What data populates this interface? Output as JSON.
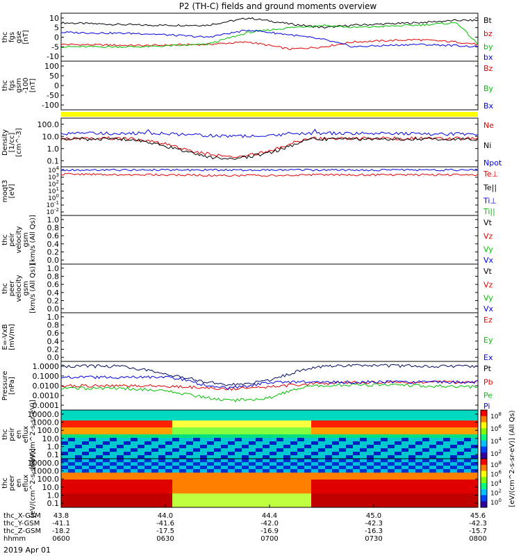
{
  "title": "P2 (TH-C) fields and ground moments overview",
  "date_label": "2019 Apr 01",
  "chart_data": {
    "type": "line",
    "panels": [
      {
        "id": "p1",
        "ylabel": [
          "thc",
          "fgs",
          "gse",
          "[nT]"
        ],
        "ticks": [
          "10",
          "5",
          "0",
          "-5",
          "-10"
        ],
        "ylim": [
          -10,
          10
        ],
        "legend": [
          {
            "label": "Bt",
            "color": "#000000"
          },
          {
            "label": "bz",
            "color": "#e00000"
          },
          {
            "label": "by",
            "color": "#00c000"
          },
          {
            "label": "bx",
            "color": "#0000e0"
          }
        ],
        "series": [
          {
            "name": "Bt",
            "color": "#000000",
            "x": [
              0,
              0.2,
              0.35,
              0.45,
              0.55,
              0.63,
              0.7,
              0.85,
              0.95,
              1
            ],
            "y": [
              6,
              5,
              5,
              8,
              5.5,
              4,
              5,
              6,
              7,
              7
            ]
          },
          {
            "name": "bz",
            "color": "#e00000",
            "x": [
              0,
              0.2,
              0.35,
              0.45,
              0.55,
              0.63,
              0.7,
              0.85,
              0.95,
              1
            ],
            "y": [
              -3,
              -3.5,
              -3,
              -2,
              -5,
              -4,
              -2,
              -1,
              -2,
              -3
            ]
          },
          {
            "name": "by",
            "color": "#00c000",
            "x": [
              0,
              0.2,
              0.35,
              0.45,
              0.55,
              0.63,
              0.7,
              0.85,
              0.95,
              1
            ],
            "y": [
              -4,
              -4,
              -3,
              2,
              4,
              5,
              4,
              5,
              6,
              -3
            ]
          },
          {
            "name": "bx",
            "color": "#0000e0",
            "x": [
              0,
              0.2,
              0.35,
              0.45,
              0.55,
              0.63,
              0.7,
              0.85,
              0.95,
              1
            ],
            "y": [
              2,
              1.5,
              0,
              3,
              1,
              -1,
              -4,
              -3,
              -3.5,
              -4
            ]
          }
        ]
      },
      {
        "id": "p2",
        "ylabel": [
          "thc",
          "fgs",
          "gsm",
          "-100",
          "[nT]"
        ],
        "ticks": [
          "100",
          "50",
          "0",
          "-50",
          "-100"
        ],
        "ylim": [
          -120,
          120
        ],
        "legend": [
          {
            "label": "Bz",
            "color": "#e00000"
          },
          {
            "label": "By",
            "color": "#00c000"
          },
          {
            "label": "Bx",
            "color": "#0000e0"
          }
        ],
        "series": []
      },
      {
        "id": "p3",
        "ylabel": [
          "Density",
          "[1/cc]",
          "[cm^-3]"
        ],
        "ticks": [
          "100.0",
          "10.0",
          "1.0",
          "0.1"
        ],
        "ylim": [
          0.05,
          300
        ],
        "yscale": "log",
        "legend": [
          {
            "label": "Ne",
            "color": "#e00000"
          },
          {
            "label": "Ni",
            "color": "#000000"
          },
          {
            "label": "Npot",
            "color": "#0000e0"
          }
        ],
        "series": [
          {
            "name": "Npot",
            "color": "#0000e0",
            "x": [
              0,
              0.2,
              0.21,
              0.215,
              0.25,
              0.3,
              0.4,
              0.5,
              0.55,
              0.6,
              0.61,
              0.615,
              0.7,
              0.85,
              1
            ],
            "y": [
              20,
              20,
              40,
              20,
              20,
              15,
              12,
              12,
              20,
              20,
              50,
              20,
              20,
              18,
              18
            ]
          },
          {
            "name": "Ne",
            "color": "#e00000",
            "x": [
              0,
              0.15,
              0.2,
              0.25,
              0.3,
              0.35,
              0.4,
              0.45,
              0.5,
              0.55,
              0.58,
              0.6,
              0.7,
              0.85,
              1
            ],
            "y": [
              8,
              8,
              6,
              3,
              1,
              0.5,
              0.3,
              0.4,
              0.8,
              3,
              6,
              8,
              8,
              8,
              8
            ]
          },
          {
            "name": "Ni",
            "color": "#000000",
            "x": [
              0,
              0.15,
              0.2,
              0.25,
              0.3,
              0.35,
              0.4,
              0.45,
              0.5,
              0.55,
              0.58,
              0.6,
              0.7,
              0.85,
              1
            ],
            "y": [
              7,
              7,
              5,
              2,
              0.7,
              0.3,
              0.2,
              0.3,
              0.6,
              2,
              5,
              7,
              7,
              7,
              7
            ]
          }
        ]
      },
      {
        "id": "p4",
        "ylabel": [
          "moqt3",
          "[eV]"
        ],
        "ticks": [
          "10^4",
          "10^3",
          "10^2",
          "10^1",
          "10^0",
          "10^-1",
          "10^-2"
        ],
        "ylim": [
          0.01,
          10000
        ],
        "yscale": "log",
        "legend": [
          {
            "label": "Te⊥",
            "color": "#e00000"
          },
          {
            "label": "Te||",
            "color": "#000000"
          },
          {
            "label": "Ti⊥",
            "color": "#0000e0"
          },
          {
            "label": "Ti||",
            "color": "#00c000"
          }
        ],
        "series": [
          {
            "name": "Ti⊥",
            "color": "#0000e0",
            "x": [
              0,
              0.5,
              1
            ],
            "y": [
              4000,
              4000,
              4000
            ]
          },
          {
            "name": "Te⊥",
            "color": "#e00000",
            "x": [
              0,
              0.3,
              0.4,
              0.5,
              0.6,
              1
            ],
            "y": [
              1200,
              1000,
              800,
              900,
              1000,
              1000
            ]
          }
        ]
      },
      {
        "id": "p5",
        "ylabel": [
          "thc",
          "peir",
          "velocity",
          "gsm",
          "[km/s (All Qs)]"
        ],
        "ticks": [
          "1.0",
          "0.8",
          "0.6",
          "0.4",
          "0.2",
          "0.0"
        ],
        "ylim": [
          0,
          1
        ],
        "legend": [
          {
            "label": "Vt",
            "color": "#000000"
          },
          {
            "label": "Vz",
            "color": "#e00000"
          },
          {
            "label": "Vy",
            "color": "#00c000"
          },
          {
            "label": "Vx",
            "color": "#0000e0"
          }
        ],
        "series": []
      },
      {
        "id": "p6",
        "ylabel": [
          "thc",
          "peer",
          "velocity",
          "gsm",
          "[km/s (All Qs)]"
        ],
        "ticks": [
          "1.0",
          "0.8",
          "0.6",
          "0.4",
          "0.2",
          "0.0"
        ],
        "ylim": [
          0,
          1
        ],
        "legend": [
          {
            "label": "Vt",
            "color": "#000000"
          },
          {
            "label": "Vz",
            "color": "#e00000"
          },
          {
            "label": "Vy",
            "color": "#00c000"
          },
          {
            "label": "Vx",
            "color": "#0000e0"
          }
        ],
        "series": []
      },
      {
        "id": "p7",
        "ylabel": [
          "E=-VxB",
          "[mV/m]"
        ],
        "ticks": [
          "1.0",
          "0.8",
          "0.6",
          "0.4",
          "0.2",
          "0.0"
        ],
        "ylim": [
          0,
          1
        ],
        "legend": [
          {
            "label": "Ez",
            "color": "#e00000"
          },
          {
            "label": "Ey",
            "color": "#00c000"
          },
          {
            "label": "Ex",
            "color": "#0000e0"
          }
        ],
        "series": []
      },
      {
        "id": "p8",
        "ylabel": [
          "Pressure",
          "[nPa]"
        ],
        "ticks": [
          "1.0000",
          "0.1000",
          "0.0100",
          "0.0010",
          "0.0001"
        ],
        "ylim": [
          0.0001,
          1
        ],
        "yscale": "log",
        "legend": [
          {
            "label": "Pt",
            "color": "#000000"
          },
          {
            "label": "Pb",
            "color": "#e00000"
          },
          {
            "label": "Pe",
            "color": "#00c000"
          },
          {
            "label": "Pi",
            "color": "#0000e0"
          }
        ],
        "series": [
          {
            "name": "Pt",
            "color": "#000a60",
            "x": [
              0,
              0.15,
              0.25,
              0.35,
              0.4,
              0.45,
              0.5,
              0.55,
              0.6,
              0.7,
              0.85,
              1
            ],
            "y": [
              0.4,
              0.4,
              0.1,
              0.02,
              0.012,
              0.015,
              0.03,
              0.1,
              0.3,
              0.5,
              0.4,
              0.4
            ]
          },
          {
            "name": "Pb",
            "color": "#e00000",
            "x": [
              0,
              0.2,
              0.3,
              0.4,
              0.5,
              0.6,
              0.7,
              0.85,
              1
            ],
            "y": [
              0.01,
              0.01,
              0.008,
              0.005,
              0.008,
              0.015,
              0.018,
              0.02,
              0.02
            ]
          },
          {
            "name": "Pe",
            "color": "#00c000",
            "x": [
              0,
              0.15,
              0.25,
              0.35,
              0.4,
              0.45,
              0.5,
              0.55,
              0.6,
              0.7,
              0.85,
              1
            ],
            "y": [
              0.006,
              0.006,
              0.004,
              0.001,
              0.0006,
              0.0007,
              0.001,
              0.004,
              0.01,
              0.012,
              0.01,
              0.008
            ]
          },
          {
            "name": "Pi",
            "color": "#0000e0",
            "x": [
              0.25,
              0.3,
              0.35,
              0.4,
              0.45,
              0.5
            ],
            "y": [
              0.05,
              0.03,
              0.01,
              0.006,
              0.01,
              0.02
            ]
          }
        ]
      },
      {
        "id": "p9",
        "type": "heatmap",
        "ylabel": [
          "thc",
          "peir",
          "en",
          "eflux",
          "[eV/(cm^2-s-sr-eV)]"
        ],
        "ticks": [
          "10000.0",
          "1000.0",
          "100.0",
          "10.0",
          "1.0",
          "0.1"
        ],
        "colorbar_ticks": [
          "10^8",
          "10^6",
          "10^4",
          "10^2"
        ],
        "colorbar_label": "[eV/(cm^2-s-sr-eV)] (All Qs)"
      },
      {
        "id": "p10",
        "type": "heatmap",
        "ylabel": [
          "thc",
          "peer",
          "en",
          "eflux",
          "[eV/(cm^2-s-sr-eV)]"
        ],
        "ticks": [
          "10000.0",
          "1000.0",
          "100.0",
          "10.0",
          "1.0",
          "0.1"
        ],
        "colorbar_ticks": [
          "10^8",
          "10^6",
          "10^4",
          "10^2",
          "10^0"
        ],
        "colorbar_label": "[eV/(cm^2-s-sr-eV)] (All Qs)"
      }
    ],
    "xaxis": {
      "row_labels": [
        "thc_X-GSM",
        "thc_Y-GSM",
        "thc_Z-GSM",
        "hhmm"
      ],
      "columns": [
        {
          "frac": 0.0,
          "vals": [
            "43.8",
            "-41.1",
            "-18.2",
            "0600"
          ]
        },
        {
          "frac": 0.25,
          "vals": [
            "44.0",
            "-41.6",
            "-17.5",
            "0630"
          ]
        },
        {
          "frac": 0.5,
          "vals": [
            "44.4",
            "-42.0",
            "-16.9",
            "0700"
          ]
        },
        {
          "frac": 0.75,
          "vals": [
            "45.0",
            "-42.3",
            "-16.3",
            "0730"
          ]
        },
        {
          "frac": 1.0,
          "vals": [
            "45.6",
            "-42.3",
            "-15.7",
            "0800"
          ]
        }
      ]
    }
  }
}
